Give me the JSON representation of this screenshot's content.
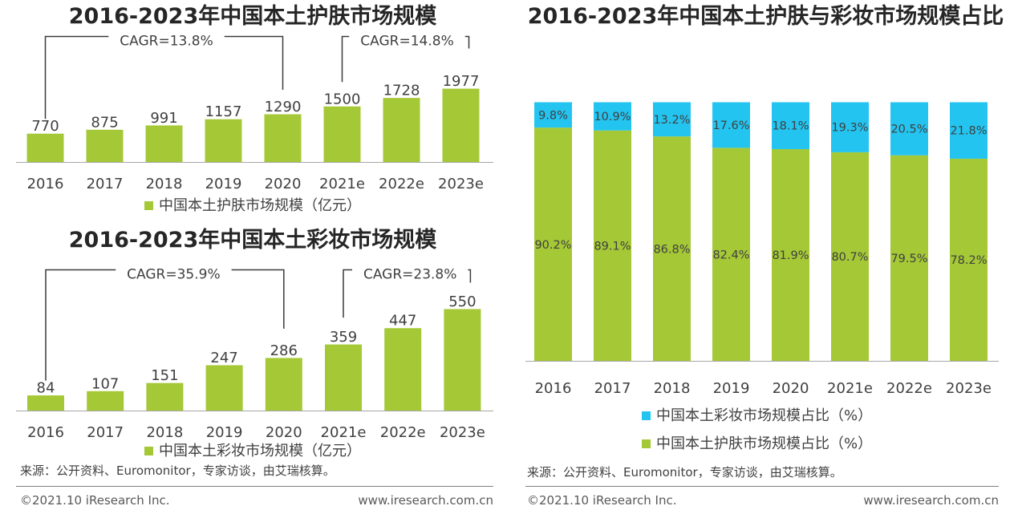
{
  "colors": {
    "text": "#404040",
    "axis": "#a6a6a6",
    "annotation_line": "#3a3a3a"
  },
  "footer": {
    "source": "来源：公开资料、Euromonitor，专家访谈，由艾瑞核算。",
    "copyright": "©2021.10 iResearch Inc.",
    "website": "www.iresearch.com.cn"
  },
  "chart_data": [
    {
      "type": "bar",
      "title": "2016-2023年中国本土护肤市场规模",
      "categories": [
        "2016",
        "2017",
        "2018",
        "2019",
        "2020",
        "2021e",
        "2022e",
        "2023e"
      ],
      "series": [
        {
          "name": "中国本土护肤市场规模（亿元）",
          "values": [
            770,
            875,
            991,
            1157,
            1290,
            1500,
            1728,
            1977
          ],
          "color": "#a5c837"
        }
      ],
      "annotations": [
        "CAGR=13.8%",
        "CAGR=14.8%"
      ],
      "data_labels": true,
      "grid": false,
      "legend": "bottom"
    },
    {
      "type": "bar",
      "title": "2016-2023年中国本土彩妆市场规模",
      "categories": [
        "2016",
        "2017",
        "2018",
        "2019",
        "2020",
        "2021e",
        "2022e",
        "2023e"
      ],
      "series": [
        {
          "name": "中国本土彩妆市场规模（亿元）",
          "values": [
            84,
            107,
            151,
            247,
            286,
            359,
            447,
            550
          ],
          "color": "#a5c837"
        }
      ],
      "annotations": [
        "CAGR=35.9%",
        "CAGR=23.8%"
      ],
      "data_labels": true,
      "grid": false,
      "legend": "bottom"
    },
    {
      "type": "bar",
      "stacked": true,
      "title": "2016-2023年中国本土护肤与彩妆市场规模占比",
      "categories": [
        "2016",
        "2017",
        "2018",
        "2019",
        "2020",
        "2021e",
        "2022e",
        "2023e"
      ],
      "series": [
        {
          "name": "中国本土彩妆市场规模占比（%）",
          "values": [
            9.8,
            10.9,
            13.2,
            17.6,
            18.1,
            19.3,
            20.5,
            21.8
          ],
          "color": "#23c4f0"
        },
        {
          "name": "中国本土护肤市场规模占比（%）",
          "values": [
            90.2,
            89.1,
            86.8,
            82.4,
            81.9,
            80.7,
            79.5,
            78.2
          ],
          "color": "#a5c837"
        }
      ],
      "ylim": [
        0,
        100
      ],
      "data_labels": true,
      "grid": false,
      "legend": "bottom"
    }
  ]
}
